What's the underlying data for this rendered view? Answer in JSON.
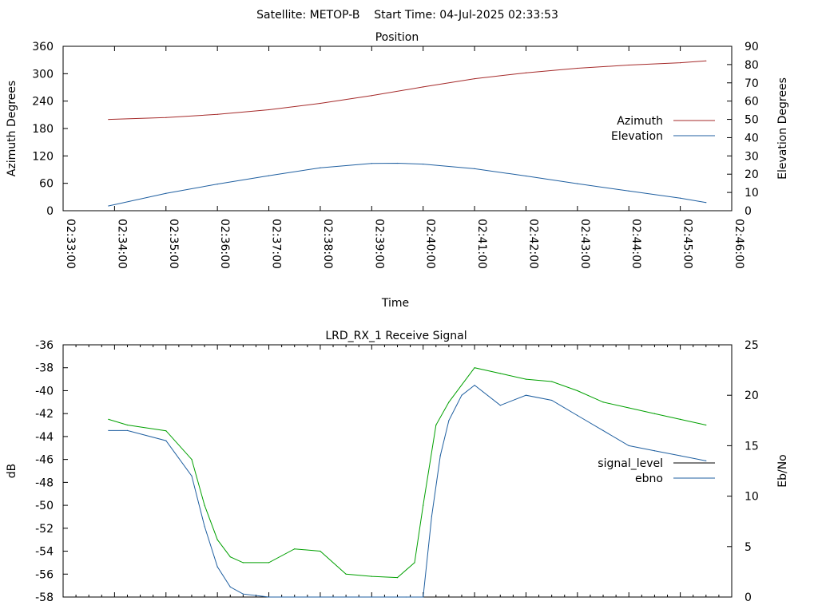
{
  "header": {
    "title": "Satellite: METOP-B    Start Time: 04-Jul-2025 02:33:53"
  },
  "chart_data": [
    {
      "type": "line",
      "title": "Position",
      "xlabel": "Time",
      "ylabel": "Azimuth Degrees",
      "y2label": "Elevation Degrees",
      "xlim": [
        "02:33:00",
        "02:46:00"
      ],
      "x_ticks": [
        "02:33:00",
        "02:34:00",
        "02:35:00",
        "02:36:00",
        "02:37:00",
        "02:38:00",
        "02:39:00",
        "02:40:00",
        "02:41:00",
        "02:42:00",
        "02:43:00",
        "02:44:00",
        "02:45:00",
        "02:46:00"
      ],
      "ylim": [
        0,
        360
      ],
      "y_ticks": [
        "0",
        "60",
        "120",
        "180",
        "240",
        "300",
        "360"
      ],
      "y2lim": [
        0,
        90
      ],
      "y2_ticks": [
        "0",
        "10",
        "20",
        "30",
        "40",
        "50",
        "60",
        "70",
        "80",
        "90"
      ],
      "legend_position": "right",
      "grid": false,
      "series": [
        {
          "name": "Azimuth",
          "axis": "y",
          "color": "#a52a2a",
          "x": [
            "02:33:53",
            "02:35:00",
            "02:36:00",
            "02:37:00",
            "02:38:00",
            "02:39:00",
            "02:40:00",
            "02:41:00",
            "02:42:00",
            "02:43:00",
            "02:44:00",
            "02:45:00",
            "02:45:30"
          ],
          "values": [
            200,
            204,
            211,
            221,
            235,
            252,
            271,
            289,
            302,
            312,
            319,
            324,
            328
          ]
        },
        {
          "name": "Elevation",
          "axis": "y2",
          "color": "#1f5fa0",
          "x": [
            "02:33:53",
            "02:35:00",
            "02:36:00",
            "02:37:00",
            "02:38:00",
            "02:39:00",
            "02:39:30",
            "02:40:00",
            "02:41:00",
            "02:42:00",
            "02:43:00",
            "02:44:00",
            "02:45:00",
            "02:45:30"
          ],
          "values": [
            2.6,
            9.5,
            14.6,
            19.2,
            23.5,
            25.9,
            26.0,
            25.5,
            23.0,
            19.0,
            14.8,
            10.8,
            6.9,
            4.5
          ]
        }
      ]
    },
    {
      "type": "line",
      "title": "LRD_RX_1 Receive Signal",
      "ylabel": "dB",
      "y2label": "Eb/No",
      "xlim": [
        "02:33:00",
        "02:46:00"
      ],
      "ylim": [
        -58,
        -36
      ],
      "y_ticks": [
        "-58",
        "-56",
        "-54",
        "-52",
        "-50",
        "-48",
        "-46",
        "-44",
        "-42",
        "-40",
        "-38",
        "-36"
      ],
      "y2lim": [
        0,
        25
      ],
      "y2_ticks": [
        "0",
        "5",
        "10",
        "15",
        "20",
        "25"
      ],
      "legend_position": "right",
      "grid": false,
      "series": [
        {
          "name": "signal_level",
          "axis": "y",
          "color": "#000000",
          "note_colors": {
            "above_threshold": "#00a000",
            "below_threshold": "#a52a2a"
          },
          "x": [
            "02:33:53",
            "02:34:15",
            "02:35:00",
            "02:35:30",
            "02:35:45",
            "02:36:00",
            "02:36:15",
            "02:36:30",
            "02:37:00",
            "02:37:30",
            "02:38:00",
            "02:38:30",
            "02:39:00",
            "02:39:30",
            "02:39:50",
            "02:40:00",
            "02:40:15",
            "02:40:30",
            "02:41:00",
            "02:41:30",
            "02:42:00",
            "02:42:30",
            "02:43:00",
            "02:43:30",
            "02:44:00",
            "02:44:30",
            "02:45:00",
            "02:45:30"
          ],
          "values": [
            -42.5,
            -43.0,
            -43.5,
            -46.0,
            -50.0,
            -53.0,
            -54.5,
            -55.0,
            -55.0,
            -53.8,
            -54.0,
            -56.0,
            -56.2,
            -56.3,
            -55.0,
            -50.0,
            -43.0,
            -41.0,
            -38.0,
            -38.5,
            -39.0,
            -39.2,
            -40.0,
            -41.0,
            -41.5,
            -42.0,
            -42.5,
            -43.0
          ]
        },
        {
          "name": "ebno",
          "axis": "y2",
          "color": "#1f5fa0",
          "x": [
            "02:33:53",
            "02:34:15",
            "02:35:00",
            "02:35:30",
            "02:35:45",
            "02:36:00",
            "02:36:15",
            "02:36:30",
            "02:37:00",
            "02:38:00",
            "02:39:00",
            "02:39:40",
            "02:40:00",
            "02:40:10",
            "02:40:20",
            "02:40:30",
            "02:40:45",
            "02:41:00",
            "02:41:30",
            "02:42:00",
            "02:42:30",
            "02:43:00",
            "02:43:30",
            "02:44:00",
            "02:44:30",
            "02:45:00",
            "02:45:30"
          ],
          "values": [
            16.5,
            16.5,
            15.5,
            12.0,
            7.0,
            3.0,
            1.0,
            0.3,
            0.0,
            0.0,
            0.0,
            0.0,
            0.0,
            8.0,
            14.0,
            17.5,
            20.0,
            21.0,
            19.0,
            20.0,
            19.5,
            18.0,
            16.5,
            15.0,
            14.5,
            14.0,
            13.5
          ]
        }
      ]
    }
  ]
}
